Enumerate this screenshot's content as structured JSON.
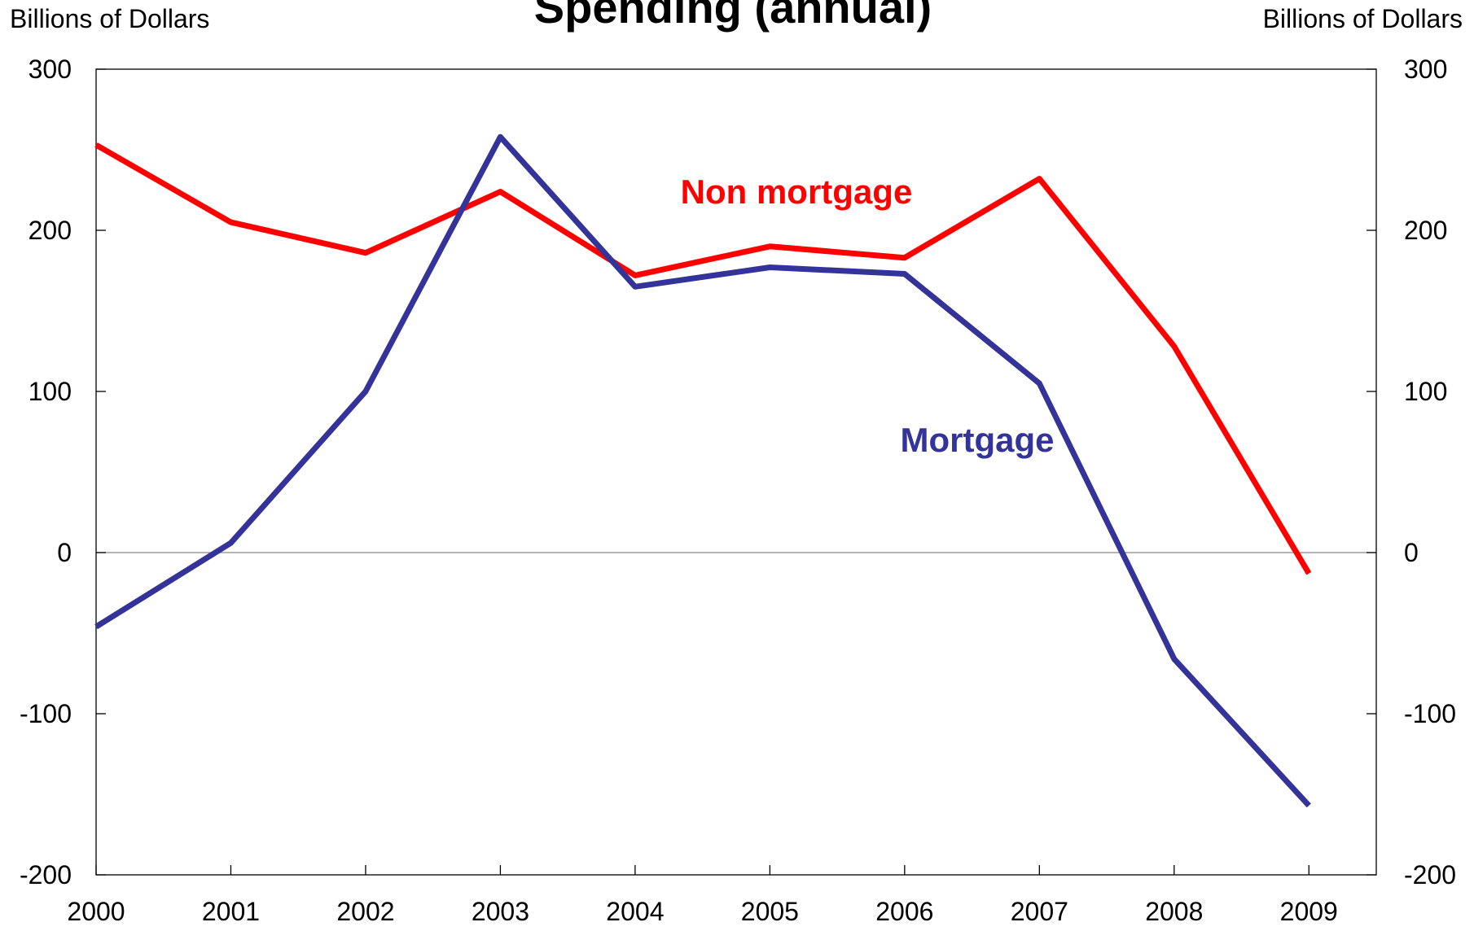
{
  "chart_data": {
    "type": "line",
    "title": "Spending (annual)",
    "y_label": "Billions of Dollars",
    "y2_label": "Billions of Dollars",
    "x": [
      2000,
      2001,
      2002,
      2003,
      2004,
      2005,
      2006,
      2007,
      2008,
      2009
    ],
    "xlim": [
      2000,
      2009.5
    ],
    "xticks": [
      2000,
      2001,
      2002,
      2003,
      2004,
      2005,
      2006,
      2007,
      2008,
      2009
    ],
    "ylim": [
      -200,
      300
    ],
    "yticks": [
      -200,
      -100,
      0,
      100,
      200,
      300
    ],
    "y2lim": [
      -200,
      300
    ],
    "y2ticks": [
      -200,
      -100,
      0,
      100,
      200,
      300
    ],
    "series": [
      {
        "name": "Non mortgage",
        "color": "#ff0000",
        "values": [
          253,
          205,
          186,
          224,
          172,
          190,
          183,
          232,
          128,
          -13
        ]
      },
      {
        "name": "Mortgage",
        "color": "#333399",
        "values": [
          -46,
          6,
          100,
          258,
          165,
          177,
          173,
          105,
          -66,
          -157
        ]
      }
    ]
  }
}
